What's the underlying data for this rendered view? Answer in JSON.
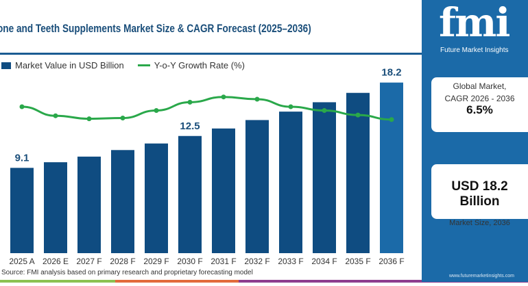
{
  "title": "one and Teeth Supplements Market Size & CAGR Forecast (2025–2036)",
  "legend": {
    "bar": "Market Value in USD Billion",
    "line": "Y-o-Y Growth Rate (%)"
  },
  "source": "Source: FMI analysis based on primary research and proprietary forecasting model",
  "panel": {
    "logo_text": "fmi",
    "logo_sub": "Future Market Insights",
    "cagr_label1": "Global Market,",
    "cagr_label2": "CAGR 2026 - 2036",
    "cagr_value": "6.5%",
    "size_value": "USD 18.2 Billion",
    "size_label": "Market Size, 2036",
    "url": "www.futuremarketinsights.com"
  },
  "colors": {
    "bar": "#0f4c81",
    "bar_highlight": "#1b6aa8",
    "line": "#2aa84a",
    "panel": "#1b6aa8"
  },
  "chart_data": {
    "type": "bar",
    "categories": [
      "2025 A",
      "2026 E",
      "2027 F",
      "2028 F",
      "2029 F",
      "2030 F",
      "2031 F",
      "2032 F",
      "2033 F",
      "2034 F",
      "2035 F",
      "2036 F"
    ],
    "series": [
      {
        "name": "Market Value in USD Billion",
        "type": "bar",
        "values": [
          9.1,
          9.7,
          10.3,
          11.0,
          11.7,
          12.5,
          13.3,
          14.2,
          15.1,
          16.1,
          17.1,
          18.2
        ]
      },
      {
        "name": "Y-o-Y Growth Rate (%)",
        "type": "line",
        "values": [
          6.8,
          6.2,
          6.0,
          6.05,
          6.55,
          7.1,
          7.45,
          7.3,
          6.8,
          6.55,
          6.25,
          5.95
        ]
      }
    ],
    "data_labels": {
      "0": "9.1",
      "5": "12.5",
      "11": "18.2"
    },
    "grid": false,
    "legend": "top-left"
  }
}
